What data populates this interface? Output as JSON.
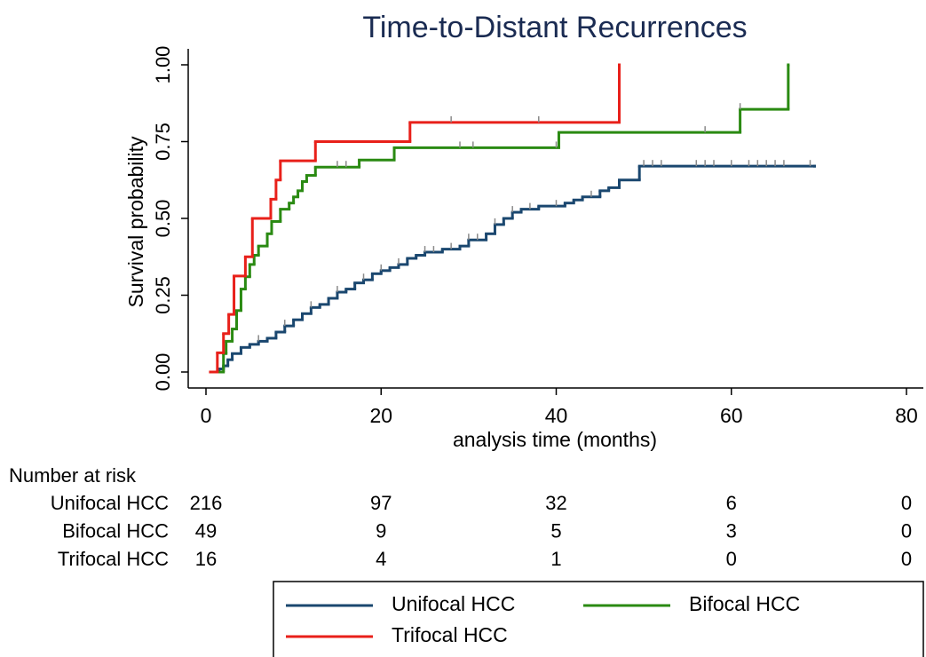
{
  "chart_data": {
    "type": "line",
    "step": "post",
    "title": "Time-to-Distant Recurrences",
    "x_label": "analysis time (months)",
    "y_label": "Survival probability",
    "xlim": [
      0,
      80
    ],
    "xticks": [
      0,
      20,
      40,
      60,
      80
    ],
    "ylim": [
      0,
      1
    ],
    "yticks": [
      {
        "value": 0,
        "label": "0.00"
      },
      {
        "value": 0.25,
        "label": "0.25"
      },
      {
        "value": 0.5,
        "label": "0.50"
      },
      {
        "value": 0.75,
        "label": "0.75"
      },
      {
        "value": 1,
        "label": "1.00"
      }
    ],
    "censor_color": "#8a8a8a",
    "series": [
      {
        "name": "Unifocal HCC",
        "color": "#1a476f",
        "x": [
          1,
          1.5,
          2,
          2.5,
          3,
          4,
          5,
          6,
          7,
          8,
          9,
          10,
          11,
          12,
          13,
          14,
          15,
          16,
          17,
          18,
          19,
          20,
          21,
          22,
          23,
          24,
          25,
          27,
          29,
          30,
          32,
          33,
          34,
          35,
          36,
          38,
          41,
          42,
          43,
          45,
          46,
          47.2,
          49.5,
          69.5
        ],
        "values": [
          0,
          0.01,
          0.02,
          0.04,
          0.06,
          0.08,
          0.09,
          0.1,
          0.11,
          0.13,
          0.15,
          0.17,
          0.19,
          0.21,
          0.22,
          0.24,
          0.26,
          0.27,
          0.29,
          0.3,
          0.32,
          0.33,
          0.34,
          0.35,
          0.37,
          0.38,
          0.39,
          0.4,
          0.41,
          0.43,
          0.45,
          0.48,
          0.5,
          0.52,
          0.53,
          0.54,
          0.55,
          0.56,
          0.57,
          0.59,
          0.6,
          0.625,
          0.67,
          0.67
        ],
        "censored": [
          6,
          9,
          12,
          15,
          18,
          20,
          22,
          25,
          26,
          28,
          30,
          31,
          33,
          35,
          37,
          40,
          44,
          50,
          51,
          52,
          56,
          57,
          58,
          60,
          62,
          63,
          64,
          65,
          66,
          69
        ]
      },
      {
        "name": "Bifocal HCC",
        "color": "#2a8a12",
        "x": [
          1.5,
          2,
          2.3,
          3,
          3.5,
          4,
          4.5,
          5,
          5.5,
          6,
          7,
          7.5,
          8.5,
          9.5,
          10,
          10.5,
          11,
          11.5,
          12.5,
          17.5,
          21.5,
          40.3,
          61,
          66.5
        ],
        "values": [
          0,
          0.06,
          0.1,
          0.14,
          0.2,
          0.27,
          0.31,
          0.35,
          0.38,
          0.41,
          0.45,
          0.49,
          0.53,
          0.55,
          0.57,
          0.59,
          0.62,
          0.64,
          0.667,
          0.69,
          0.73,
          0.78,
          0.855,
          1
        ],
        "censored": [
          15,
          16,
          29,
          30.5,
          40,
          57,
          61
        ]
      },
      {
        "name": "Trifocal HCC",
        "color": "#e8201a",
        "x": [
          0.5,
          1.3,
          2,
          2.6,
          3.2,
          4.5,
          5.3,
          7.4,
          8,
          8.5,
          12.5,
          23.3,
          47.2
        ],
        "values": [
          0,
          0.0625,
          0.125,
          0.1875,
          0.3125,
          0.375,
          0.5,
          0.5625,
          0.625,
          0.6875,
          0.75,
          0.8125,
          1
        ],
        "censored": [
          28,
          38
        ]
      }
    ],
    "risk_table": {
      "title": "Number at risk",
      "rows": [
        {
          "name": "Unifocal HCC",
          "values": [
            216,
            97,
            32,
            6,
            0
          ]
        },
        {
          "name": "Bifocal HCC",
          "values": [
            49,
            9,
            5,
            3,
            0
          ]
        },
        {
          "name": "Trifocal HCC",
          "values": [
            16,
            4,
            1,
            0,
            0
          ]
        }
      ]
    }
  }
}
